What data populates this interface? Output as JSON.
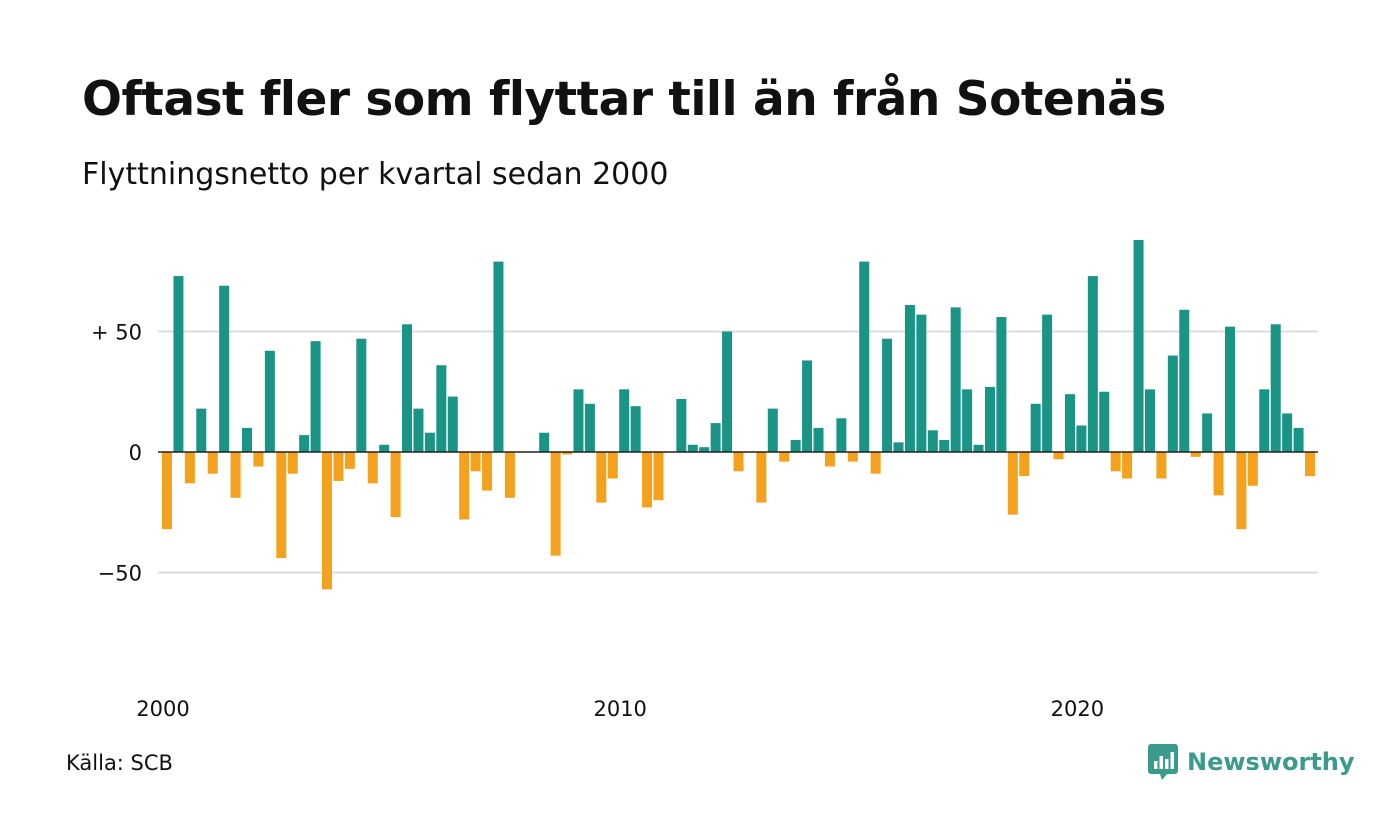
{
  "title": "Oftast fler som flyttar till än från Sotenäs",
  "subtitle": "Flyttningsnetto per kvartal sedan 2000",
  "source": "Källa: SCB",
  "brand": {
    "name": "Newsworthy",
    "color": "#3a9a8c",
    "icon": "speech-bubble-bar-chart-icon"
  },
  "colors": {
    "positive": "#1a9485",
    "negative": "#f4a11e",
    "grid": "#dddddd",
    "zero": "#222222"
  },
  "chart_data": {
    "type": "bar",
    "x_start": "2000 Q1",
    "x_step": "quarter",
    "values": [
      -32,
      73,
      -13,
      18,
      -9,
      69,
      -19,
      10,
      -6,
      42,
      -44,
      -9,
      7,
      46,
      -57,
      -12,
      -7,
      47,
      -13,
      3,
      -27,
      53,
      18,
      8,
      36,
      23,
      -28,
      -8,
      -16,
      79,
      -19,
      0,
      0,
      8,
      -43,
      -1,
      26,
      20,
      -21,
      -11,
      26,
      19,
      -23,
      -20,
      0,
      22,
      3,
      2,
      12,
      50,
      -8,
      0,
      -21,
      18,
      -4,
      5,
      38,
      10,
      -6,
      14,
      -4,
      79,
      -9,
      47,
      4,
      61,
      57,
      9,
      5,
      60,
      26,
      3,
      27,
      56,
      -26,
      -10,
      20,
      57,
      -3,
      24,
      11,
      73,
      25,
      -8,
      -11,
      88,
      26,
      -11,
      40,
      59,
      -2,
      16,
      -18,
      52,
      -32,
      -14,
      26,
      53,
      16,
      10,
      -10
    ],
    "ylim": [
      -75,
      90
    ],
    "y_ticks": [
      {
        "value": 50,
        "label": "+ 50"
      },
      {
        "value": 0,
        "label": "0"
      },
      {
        "value": -50,
        "label": "−50"
      }
    ],
    "x_ticks": [
      {
        "index": 0,
        "label": "2000"
      },
      {
        "index": 40,
        "label": "2010"
      },
      {
        "index": 80,
        "label": "2020"
      }
    ],
    "grid": true,
    "xlabel": "",
    "ylabel": ""
  }
}
